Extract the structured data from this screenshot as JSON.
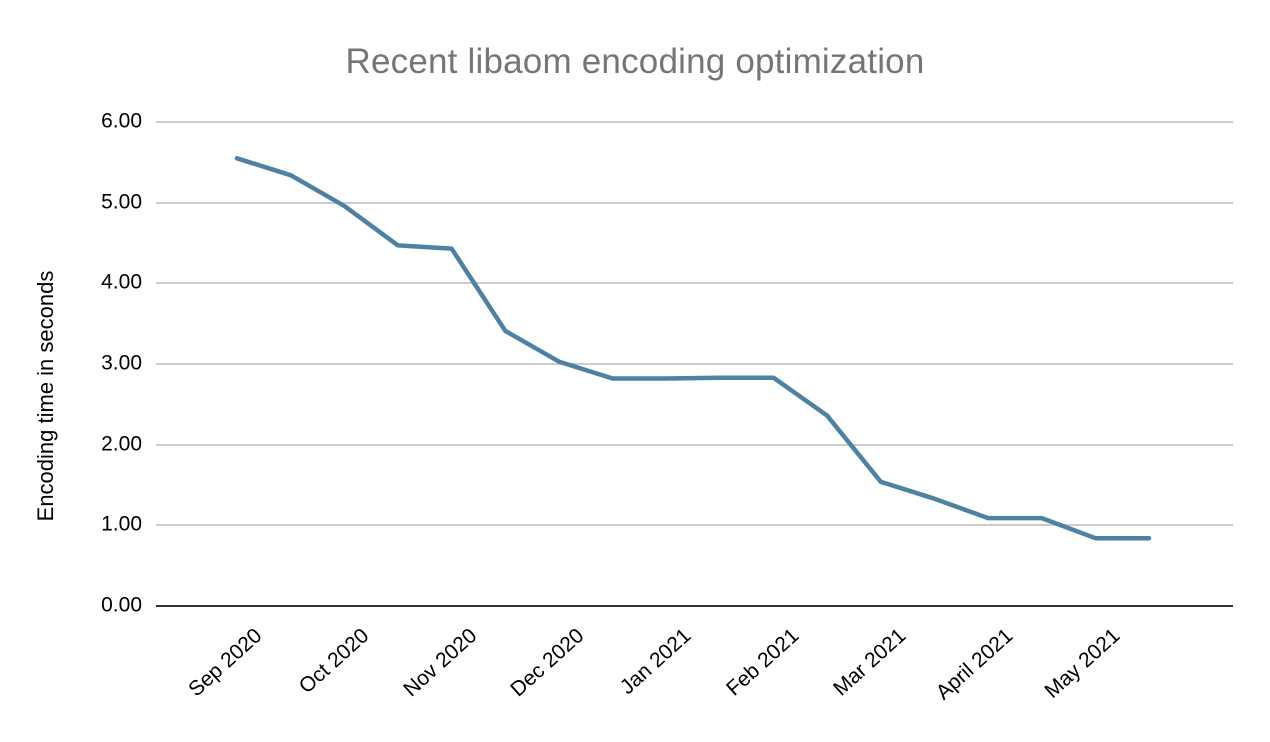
{
  "chart_data": {
    "type": "line",
    "title": "Recent libaom encoding optimization",
    "ylabel": "Encoding time in seconds",
    "xlabel": "",
    "ylim": [
      0,
      6
    ],
    "grid": true,
    "legend_position": "none",
    "y_tick_labels": [
      "6.00",
      "5.00",
      "4.00",
      "3.00",
      "2.00",
      "1.00",
      "0.00"
    ],
    "y_tick_values": [
      6,
      5,
      4,
      3,
      2,
      1,
      0
    ],
    "x_tick_labels": [
      "Sep 2020",
      "Oct 2020",
      "Nov 2020",
      "Dec 2020",
      "Jan 2021",
      "Feb 2021",
      "Mar 2021",
      "April 2021",
      "May 2021"
    ],
    "points_per_month": 2,
    "series": [
      {
        "name": "Encoding time in seconds",
        "values": [
          5.55,
          5.34,
          4.96,
          4.47,
          4.43,
          3.41,
          3.03,
          2.82,
          2.82,
          2.83,
          2.83,
          2.36,
          1.54,
          1.33,
          1.09,
          1.09,
          0.84,
          0.84
        ]
      }
    ],
    "colors": {
      "line": "#4e82a5",
      "title_text": "#757575",
      "axis_text": "#000000",
      "gridline": "#cccccc",
      "axis_line": "#333333",
      "background": "#ffffff"
    }
  }
}
